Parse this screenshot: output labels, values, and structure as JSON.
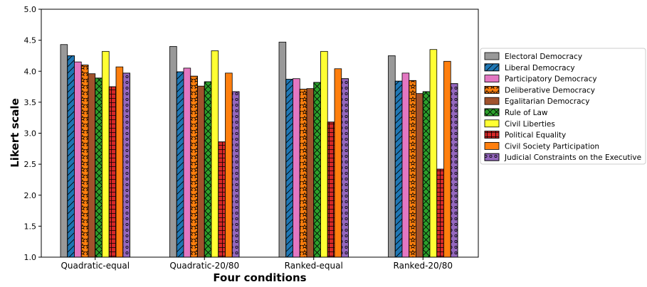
{
  "chart_data": {
    "type": "bar",
    "xlabel": "Four conditions",
    "ylabel": "Likert scale",
    "ylim": [
      1.0,
      5.0
    ],
    "yticks": [
      "1.0",
      "1.5",
      "2.0",
      "2.5",
      "3.0",
      "3.5",
      "4.0",
      "4.5",
      "5.0"
    ],
    "categories": [
      "Quadratic-equal",
      "Quadratic-20/80",
      "Ranked-equal",
      "Ranked-20/80"
    ],
    "grid": false,
    "legend_position": "right",
    "series": [
      {
        "name": "Electoral Democracy",
        "color": "#999999",
        "hatch": "none",
        "values": [
          4.43,
          4.4,
          4.47,
          4.25
        ]
      },
      {
        "name": "Liberal Democracy",
        "color": "#1f77b4",
        "hatch": "diagonal",
        "values": [
          4.25,
          3.99,
          3.87,
          3.84
        ]
      },
      {
        "name": "Participatory Democracy",
        "color": "#e377c2",
        "hatch": "none",
        "values": [
          4.15,
          4.05,
          3.88,
          3.97
        ]
      },
      {
        "name": "Deliberative Democracy",
        "color": "#ff7f0e",
        "hatch": "stars",
        "values": [
          4.1,
          3.92,
          3.71,
          3.85
        ]
      },
      {
        "name": "Egalitarian Democracy",
        "color": "#a0522d",
        "hatch": "none",
        "values": [
          3.96,
          3.76,
          3.72,
          3.64
        ]
      },
      {
        "name": "Rule of Law",
        "color": "#2ca02c",
        "hatch": "cross",
        "values": [
          3.89,
          3.83,
          3.82,
          3.67
        ]
      },
      {
        "name": "Civil Liberties",
        "color": "#ffff33",
        "hatch": "none",
        "values": [
          4.32,
          4.33,
          4.32,
          4.35
        ]
      },
      {
        "name": "Political Equality",
        "color": "#d62728",
        "hatch": "grid",
        "values": [
          3.75,
          2.86,
          3.18,
          2.42
        ]
      },
      {
        "name": "Civil Society Participation",
        "color": "#ff7f0e",
        "hatch": "none",
        "values": [
          4.07,
          3.97,
          4.04,
          4.16
        ]
      },
      {
        "name": "Judicial Constraints on the Executive",
        "color": "#9467bd",
        "hatch": "circles",
        "values": [
          3.97,
          3.67,
          3.88,
          3.8
        ]
      }
    ]
  }
}
